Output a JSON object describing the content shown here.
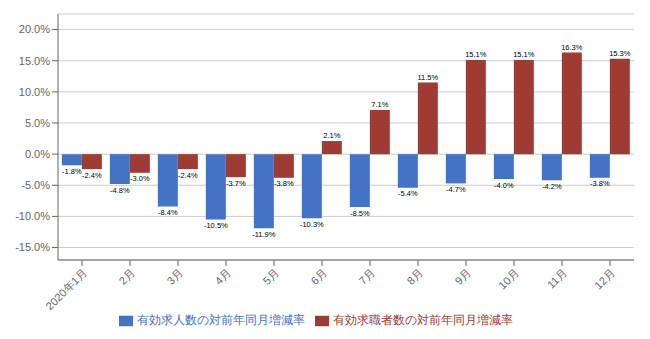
{
  "chart_data": {
    "type": "bar",
    "categories": [
      "2020年1月",
      "2月",
      "3月",
      "4月",
      "5月",
      "6月",
      "7月",
      "8月",
      "9月",
      "10月",
      "11月",
      "12月"
    ],
    "series": [
      {
        "name": "有効求人数の対前年同月増減率",
        "color": "#4472C4",
        "values": [
          -1.8,
          -4.8,
          -8.4,
          -10.5,
          -11.9,
          -10.3,
          -8.5,
          -5.4,
          -4.7,
          -4.0,
          -4.2,
          -3.8
        ],
        "value_labels": [
          "-1.8%",
          "-4.8%",
          "-8.4%",
          "-10.5%",
          "-11.9%",
          "-10.3%",
          "-8.5%",
          "-5.4%",
          "-4.7%",
          "-4.0%",
          "-4.2%",
          "-3.8%"
        ]
      },
      {
        "name": "有効求職者数の対前年同月増減率",
        "color": "#9E3B32",
        "values": [
          -2.4,
          -3.0,
          -2.4,
          -3.7,
          -3.8,
          2.1,
          7.1,
          11.5,
          15.1,
          15.1,
          16.3,
          15.3
        ],
        "value_labels": [
          "-2.4%",
          "-3.0%",
          "-2.4%",
          "-3.7%",
          "-3.8%",
          "2.1%",
          "7.1%",
          "11.5%",
          "15.1%",
          "15.1%",
          "16.3%",
          "15.3%"
        ]
      }
    ],
    "ylim": [
      -17.0,
      22.5
    ],
    "yticks": [
      {
        "value": -15.0,
        "label": "-15.0%"
      },
      {
        "value": -10.0,
        "label": "-10.0%"
      },
      {
        "value": -5.0,
        "label": "-5.0%"
      },
      {
        "value": 0.0,
        "label": "0.0%"
      },
      {
        "value": 5.0,
        "label": "5.0%"
      },
      {
        "value": 10.0,
        "label": "10.0%"
      },
      {
        "value": 15.0,
        "label": "15.0%"
      },
      {
        "value": 20.0,
        "label": "20.0%"
      }
    ],
    "grid": true,
    "data_labels": true,
    "legend": "bottom"
  }
}
